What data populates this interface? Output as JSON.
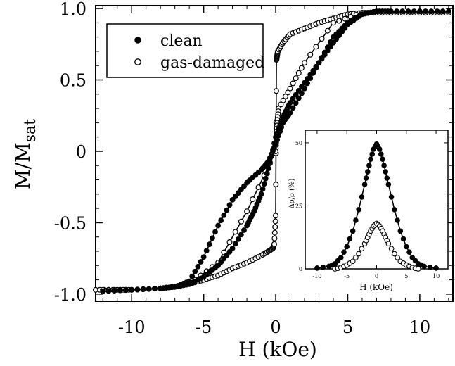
{
  "chart_data": [
    {
      "type": "scatter",
      "role": "main",
      "xlabel": "H (kOe)",
      "ylabel": "M/M",
      "ylabel_sub": "sat",
      "xlim": [
        -12.5,
        12.3
      ],
      "ylim": [
        -1.05,
        1.02
      ],
      "xticks": [
        -10,
        -5,
        0,
        5,
        10
      ],
      "xtick_labels": [
        "-10",
        "-5",
        "0",
        "5",
        "10"
      ],
      "yticks": [
        -1.0,
        -0.5,
        0,
        0.5,
        1.0
      ],
      "ytick_labels": [
        "-1.0",
        "-0.5",
        "0",
        "0.5",
        "1.0"
      ],
      "grid": false,
      "legend_position": "top-left",
      "series": [
        {
          "name": "clean",
          "marker": "filled-circle",
          "x": [
            -12.0,
            -10.0,
            -8.0,
            -7.0,
            -6.0,
            -5.0,
            -4.0,
            -3.0,
            -2.0,
            -1.5,
            -1.0,
            -0.5,
            0.0,
            0.5,
            1.0,
            2.0,
            3.0,
            4.0,
            5.0,
            6.0,
            7.0,
            8.0,
            10.0,
            12.0,
            10.0,
            8.0,
            7.0,
            6.0,
            5.0,
            4.0,
            3.0,
            2.0,
            1.0,
            0.5,
            0.0,
            -0.5,
            -1.0,
            -2.0,
            -3.0,
            -4.0,
            -5.0,
            -6.0,
            -7.0,
            -8.0,
            -10.0,
            -12.0
          ],
          "y": [
            -0.98,
            -0.97,
            -0.96,
            -0.95,
            -0.93,
            -0.88,
            -0.8,
            -0.68,
            -0.52,
            -0.42,
            -0.3,
            -0.12,
            0.1,
            0.24,
            0.34,
            0.48,
            0.62,
            0.76,
            0.89,
            0.96,
            0.98,
            0.98,
            0.98,
            0.98,
            0.98,
            0.98,
            0.98,
            0.96,
            0.9,
            0.8,
            0.62,
            0.44,
            0.27,
            0.2,
            0.05,
            -0.07,
            -0.13,
            -0.22,
            -0.34,
            -0.52,
            -0.74,
            -0.91,
            -0.95,
            -0.96,
            -0.97,
            -0.98
          ]
        },
        {
          "name": "gas-damaged",
          "marker": "open-circle",
          "x": [
            -12.5,
            -11.0,
            -10.0,
            -8.0,
            -7.0,
            -6.0,
            -5.0,
            -4.0,
            -3.0,
            -2.0,
            -1.0,
            -0.5,
            -0.2,
            -0.1,
            0.0,
            0.05,
            0.1,
            0.15,
            0.5,
            1.0,
            2.0,
            3.0,
            4.0,
            5.0,
            6.0,
            7.0,
            8.0,
            10.0,
            12.0,
            10.0,
            8.0,
            6.0,
            4.0,
            2.0,
            1.0,
            0.2,
            0.1,
            0.05,
            0.0,
            -2.0,
            -4.0,
            -6.0,
            -8.0,
            -10.0,
            -12.0
          ],
          "y": [
            -0.97,
            -0.97,
            -0.97,
            -0.96,
            -0.95,
            -0.93,
            -0.9,
            -0.87,
            -0.82,
            -0.78,
            -0.73,
            -0.7,
            -0.68,
            -0.65,
            -0.45,
            0.64,
            0.67,
            0.7,
            0.76,
            0.82,
            0.86,
            0.9,
            0.93,
            0.96,
            0.97,
            0.97,
            0.97,
            0.97,
            0.97,
            0.97,
            0.97,
            0.97,
            0.9,
            0.62,
            0.44,
            0.3,
            0.2,
            0.1,
            0.0,
            -0.42,
            -0.78,
            -0.93,
            -0.96,
            -0.97,
            -0.97
          ]
        }
      ]
    },
    {
      "type": "scatter",
      "role": "inset",
      "xlabel": "H (kOe)",
      "ylabel": "Δρ/ρ (%)",
      "xlim": [
        -12,
        12
      ],
      "ylim": [
        0,
        55
      ],
      "xticks": [
        -10,
        -5,
        0,
        5,
        10
      ],
      "xtick_labels": [
        "-10",
        "-5",
        "0",
        "5",
        "10"
      ],
      "yticks": [
        0,
        25,
        50
      ],
      "ytick_labels": [
        "0",
        "25",
        "50"
      ],
      "grid": false,
      "series": [
        {
          "name": "clean",
          "marker": "filled-circle",
          "x": [
            -10,
            -8,
            -7,
            -6,
            -5,
            -4,
            -3,
            -2,
            -1.5,
            -1,
            -0.5,
            0,
            0.5,
            1,
            1.5,
            2,
            3,
            4,
            5,
            6,
            7,
            8,
            10
          ],
          "y": [
            0.3,
            1.0,
            2.0,
            4.5,
            8.8,
            15.0,
            23.5,
            33.5,
            38.5,
            43.5,
            47.5,
            49.5,
            47.5,
            43.5,
            38.5,
            33.5,
            23.5,
            15.0,
            8.8,
            4.5,
            2.0,
            1.0,
            0.3
          ]
        },
        {
          "name": "gas-damaged",
          "marker": "open-circle",
          "x": [
            -7,
            -6,
            -5,
            -4,
            -3,
            -2,
            -1.5,
            -1,
            -0.5,
            0,
            0.5,
            1,
            1.5,
            2,
            3,
            4,
            5,
            6,
            7
          ],
          "y": [
            0.0,
            0.5,
            1.5,
            3.0,
            6.0,
            10.0,
            12.5,
            15.0,
            17.0,
            18.0,
            17.0,
            15.0,
            12.5,
            10.0,
            6.0,
            3.0,
            1.5,
            0.5,
            0.0
          ]
        }
      ]
    }
  ]
}
